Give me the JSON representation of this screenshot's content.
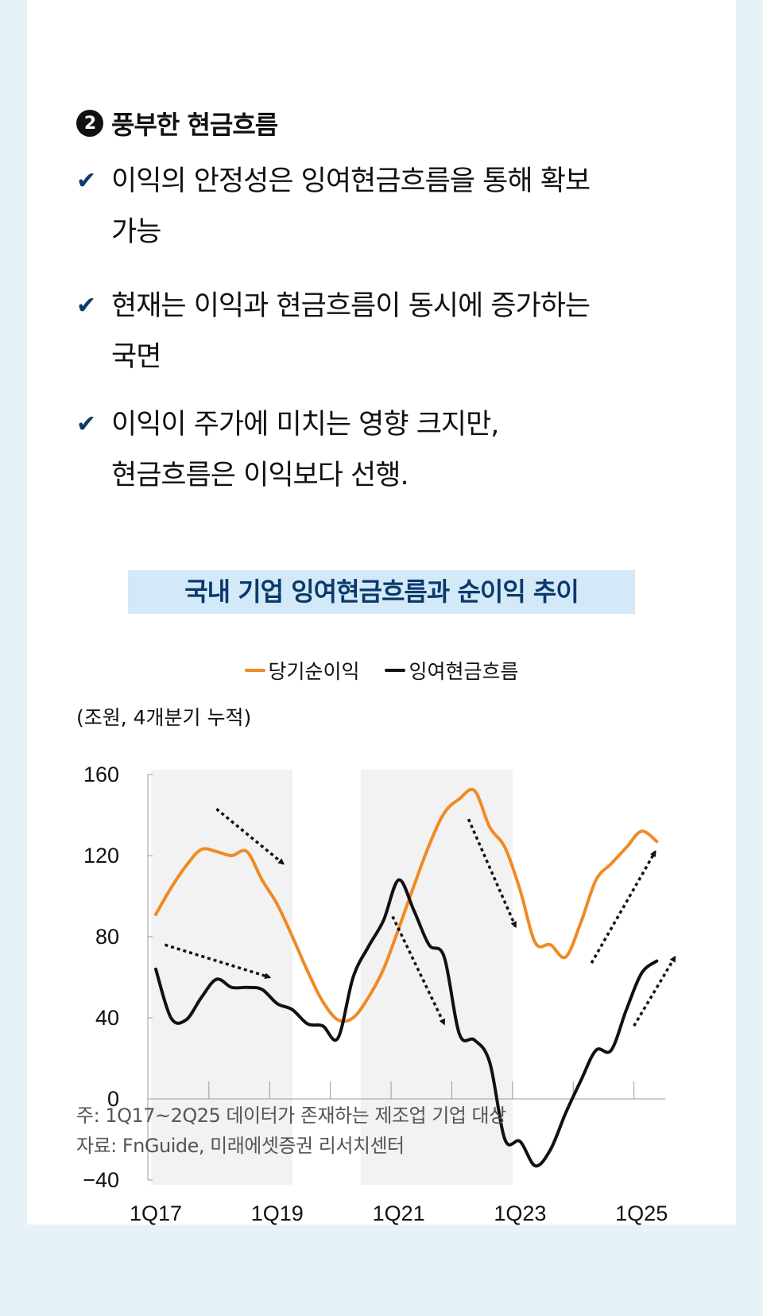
{
  "section": {
    "number": "2",
    "title": "풍부한 현금흐름",
    "bullets": [
      {
        "lines": [
          "이익의 안정성은 잉여현금흐름을 통해 확보",
          "가능"
        ]
      },
      {
        "lines": [
          "현재는 이익과 현금흐름이 동시에 증가하는",
          "국면"
        ]
      },
      {
        "lines": [
          "이익이 주가에 미치는 영향 크지만,",
          "현금흐름은 이익보다 선행."
        ]
      }
    ]
  },
  "chart_data": {
    "type": "line",
    "title": "국내 기업 잉여현금흐름과 순이익 추이",
    "ylabel": "(조원, 4개분기 누적)",
    "xlabel": "",
    "ylim": [
      -40,
      160
    ],
    "yticks": [
      "160",
      "120",
      "80",
      "40",
      "0",
      "−40"
    ],
    "ytick_values": [
      160,
      120,
      80,
      40,
      0,
      -40
    ],
    "xtick_labels": [
      "1Q17",
      "1Q19",
      "1Q21",
      "1Q23",
      "1Q25"
    ],
    "xtick_index": [
      0,
      8,
      16,
      24,
      32
    ],
    "x": [
      "1Q17",
      "2Q17",
      "3Q17",
      "4Q17",
      "1Q18",
      "2Q18",
      "3Q18",
      "4Q18",
      "1Q19",
      "2Q19",
      "3Q19",
      "4Q19",
      "1Q20",
      "2Q20",
      "3Q20",
      "4Q20",
      "1Q21",
      "2Q21",
      "3Q21",
      "4Q21",
      "1Q22",
      "2Q22",
      "3Q22",
      "4Q22",
      "1Q23",
      "2Q23",
      "3Q23",
      "4Q23",
      "1Q24",
      "2Q24",
      "3Q24",
      "4Q24",
      "1Q25",
      "2Q25"
    ],
    "legend_position": "top-center",
    "series": [
      {
        "name": "당기순이익",
        "color": "#f08a24",
        "values": [
          91,
          104,
          115,
          123,
          122,
          120,
          122,
          108,
          96,
          80,
          63,
          48,
          39,
          40,
          50,
          64,
          84,
          105,
          125,
          141,
          148,
          152,
          134,
          124,
          103,
          77,
          76,
          70,
          87,
          108,
          116,
          124,
          132,
          127
        ]
      },
      {
        "name": "잉여현금흐름",
        "color": "#111111",
        "values": [
          64,
          40,
          39,
          50,
          59,
          55,
          55,
          54,
          47,
          44,
          37,
          36,
          30,
          60,
          75,
          88,
          108,
          93,
          76,
          70,
          32,
          29,
          18,
          -20,
          -21,
          -33,
          -25,
          -7,
          9,
          24,
          24,
          44,
          62,
          68
        ]
      }
    ],
    "shaded_periods_index": [
      [
        -0.3,
        9
      ],
      [
        13.5,
        23.5
      ]
    ],
    "trend_arrows": [
      {
        "from": [
          4,
          143
        ],
        "to": [
          8.4,
          116
        ]
      },
      {
        "from": [
          0.6,
          76
        ],
        "to": [
          7.5,
          60
        ]
      },
      {
        "from": [
          15.6,
          90
        ],
        "to": [
          19,
          37
        ]
      },
      {
        "from": [
          20.6,
          138
        ],
        "to": [
          23.7,
          85
        ]
      },
      {
        "from": [
          28.7,
          67
        ],
        "to": [
          32.9,
          122
        ]
      },
      {
        "from": [
          31.5,
          36
        ],
        "to": [
          34.2,
          70
        ]
      }
    ]
  },
  "notes": [
    "주: 1Q17~2Q25 데이터가 존재하는 제조업 기업 대상",
    "자료: FnGuide, 미래에셋증권 리서치센터"
  ]
}
